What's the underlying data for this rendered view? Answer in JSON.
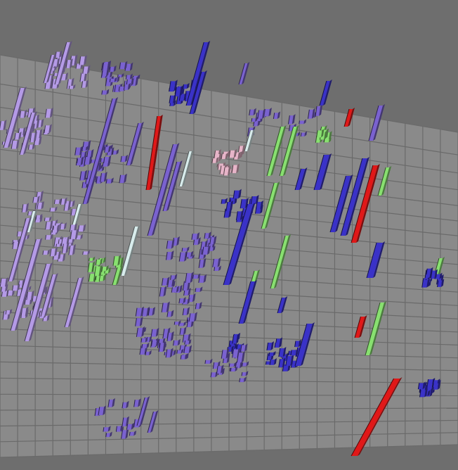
{
  "scene": {
    "kind": "3d-bar-field",
    "background_color": "#6e6e6e",
    "floor_color": "#8a8a8a",
    "grid_line_color": "#6a6a6a",
    "bar_colors": {
      "red": "#e01818",
      "green": "#88e070",
      "blue": "#3a32c8",
      "violet": "#7a62d0",
      "lavender": "#b49ae6",
      "pale": "#d8ecec",
      "pink": "#e6b4c8"
    }
  }
}
